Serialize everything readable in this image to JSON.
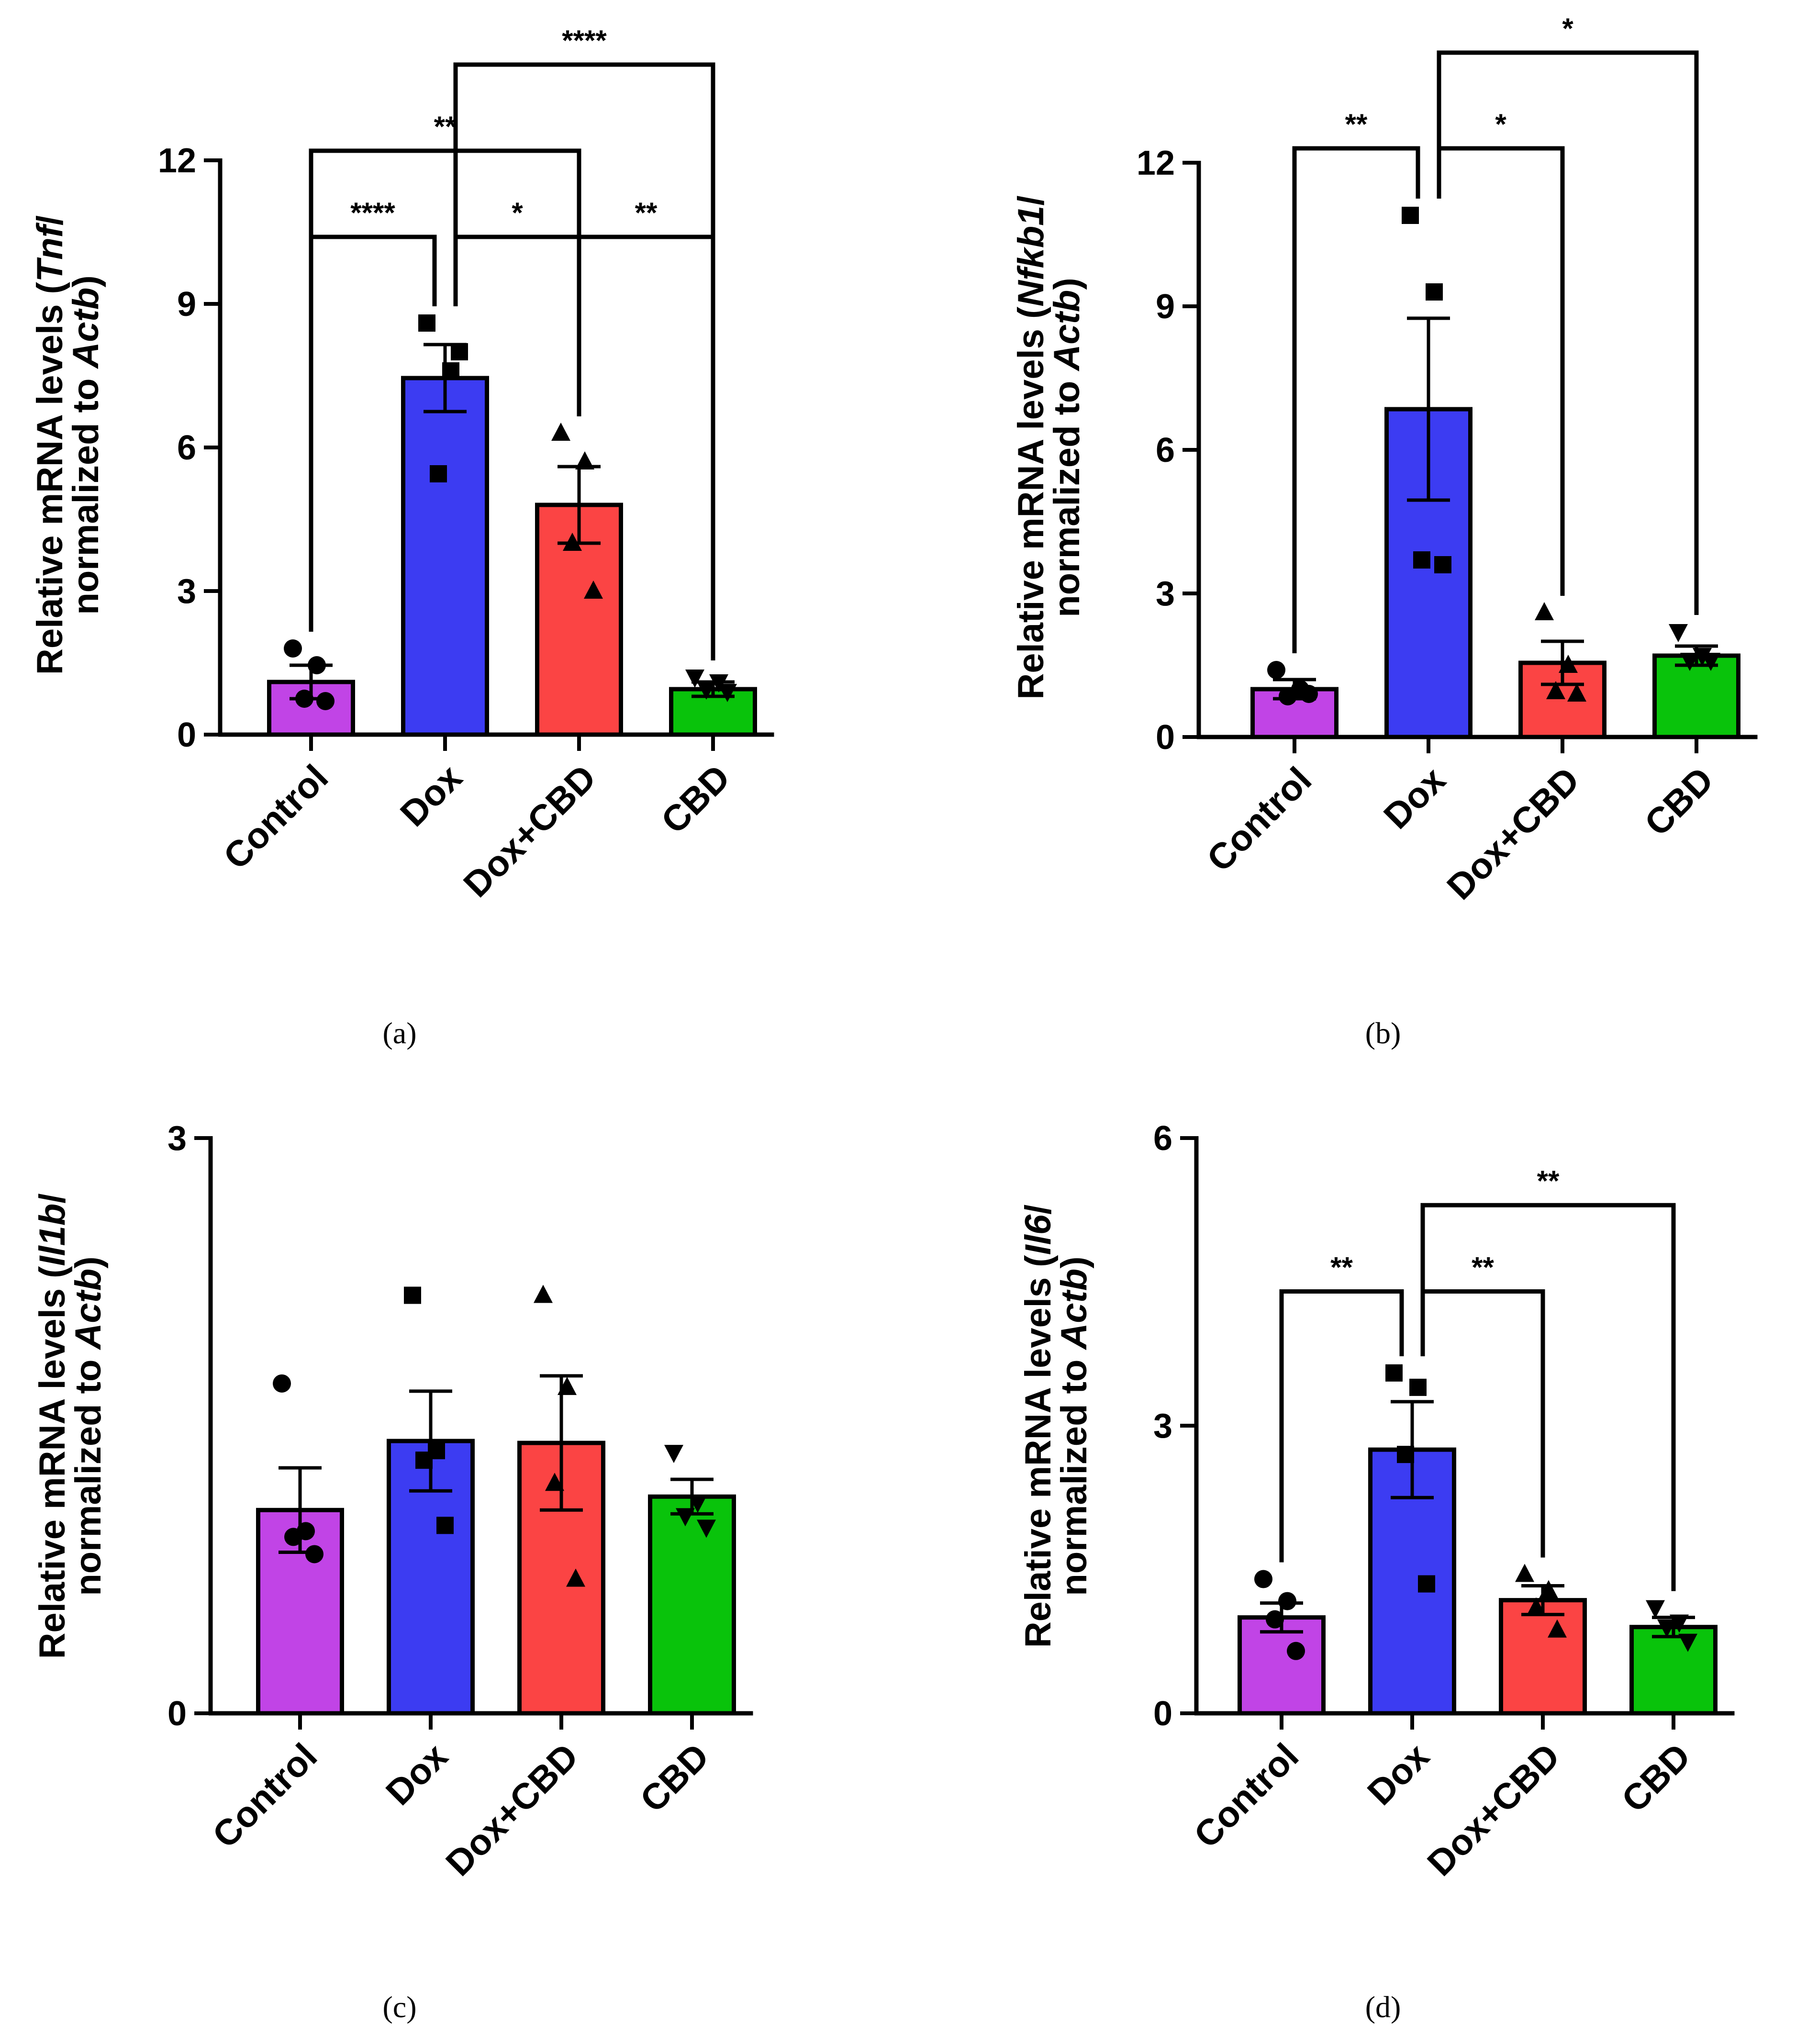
{
  "figure": {
    "panels_caption": [
      "(a)",
      "(b)",
      "(c)",
      "(d)"
    ]
  },
  "colors": {
    "Control": "#c144e6",
    "Dox": "#3c3cf2",
    "Dox+CBD": "#fb4444",
    "CBD": "#09c30b",
    "axis": "#000000"
  },
  "chart_data": [
    {
      "type": "bar",
      "panel": "(a)",
      "categories": [
        "Control",
        "Dox",
        "Dox+CBD",
        "CBD"
      ],
      "values": [
        1.1,
        7.45,
        4.8,
        0.95
      ],
      "sem": [
        0.35,
        0.7,
        0.8,
        0.15
      ],
      "points": [
        [
          1.8,
          1.45,
          0.75,
          0.7
        ],
        [
          8.6,
          7.6,
          5.45,
          8.0
        ],
        [
          6.3,
          5.7,
          4.0,
          3.0
        ],
        [
          1.2,
          1.1,
          0.95,
          0.9
        ]
      ],
      "markers": [
        "circle",
        "square",
        "triangle-up",
        "triangle-down"
      ],
      "ylabel_prefix": "Relative mRNA levels (",
      "ylabel_gene": "Tnf",
      "ylabel_mid": "/",
      "ylabel_line2_prefix": "normalized to ",
      "ylabel_ref": "Actb",
      "ylabel_close": ")",
      "ylim": [
        0,
        12
      ],
      "yticks": [
        "0",
        "3",
        "6",
        "9",
        "12"
      ],
      "brackets": [
        {
          "from": 0,
          "to": 1,
          "label": "****",
          "level": 10.4
        },
        {
          "from": 1,
          "to": 2,
          "label": "*",
          "level": 10.4
        },
        {
          "from": 2,
          "to": 3,
          "label": "**",
          "level": 10.4
        },
        {
          "from": 0,
          "to": 2,
          "label": "**",
          "level": 12.2
        },
        {
          "from": 1,
          "to": 3,
          "label": "****",
          "level": 14.0
        }
      ]
    },
    {
      "type": "bar",
      "panel": "(b)",
      "categories": [
        "Control",
        "Dox",
        "Dox+CBD",
        "CBD"
      ],
      "values": [
        1.0,
        6.85,
        1.55,
        1.7
      ],
      "sem": [
        0.2,
        1.9,
        0.45,
        0.2
      ],
      "points": [
        [
          1.4,
          1.0,
          0.85,
          0.9
        ],
        [
          10.9,
          9.3,
          3.7,
          3.6
        ],
        [
          2.6,
          1.5,
          0.95,
          0.9
        ],
        [
          2.2,
          1.7,
          1.6,
          1.6
        ]
      ],
      "markers": [
        "circle",
        "square",
        "triangle-up",
        "triangle-down"
      ],
      "ylabel_prefix": "Relative mRNA levels (",
      "ylabel_gene": "Nfkb1",
      "ylabel_mid": "/",
      "ylabel_line2_prefix": "normalized to ",
      "ylabel_ref": "Actb",
      "ylabel_close": ")",
      "ylim": [
        0,
        12
      ],
      "yticks": [
        "0",
        "3",
        "6",
        "9",
        "12"
      ],
      "brackets": [
        {
          "from": 0,
          "to": 1,
          "label": "**",
          "level": 12.3
        },
        {
          "from": 1,
          "to": 2,
          "label": "*",
          "level": 12.3
        },
        {
          "from": 1,
          "to": 3,
          "label": "*",
          "level": 14.3
        }
      ]
    },
    {
      "type": "bar",
      "panel": "(c)",
      "categories": [
        "Control",
        "Dox",
        "Dox+CBD",
        "CBD"
      ],
      "values": [
        1.06,
        1.42,
        1.41,
        1.13
      ],
      "sem": [
        0.22,
        0.26,
        0.35,
        0.09
      ],
      "points": [
        [
          1.72,
          0.95,
          0.92,
          0.83
        ],
        [
          2.18,
          1.37,
          1.32,
          0.98
        ],
        [
          2.18,
          1.7,
          1.2,
          0.7
        ],
        [
          1.36,
          1.1,
          1.03,
          0.97
        ]
      ],
      "markers": [
        "circle",
        "square",
        "triangle-up",
        "triangle-down"
      ],
      "ylabel_prefix": "Relative mRNA levels (",
      "ylabel_gene": "Il1b",
      "ylabel_mid": "/",
      "ylabel_line2_prefix": "normalized to ",
      "ylabel_ref": "Actb",
      "ylabel_close": ")",
      "ylim": [
        0,
        3
      ],
      "yticks": [
        "0",
        "3"
      ],
      "brackets": []
    },
    {
      "type": "bar",
      "panel": "(d)",
      "categories": [
        "Control",
        "Dox",
        "Dox+CBD",
        "CBD"
      ],
      "values": [
        1.0,
        2.75,
        1.18,
        0.9
      ],
      "sem": [
        0.15,
        0.5,
        0.15,
        0.1
      ],
      "points": [
        [
          1.4,
          1.17,
          0.98,
          0.65
        ],
        [
          3.55,
          3.4,
          2.7,
          1.35
        ],
        [
          1.45,
          1.28,
          1.1,
          0.87
        ],
        [
          1.1,
          0.95,
          0.9,
          0.75
        ]
      ],
      "markers": [
        "circle",
        "square",
        "triangle-up",
        "triangle-down"
      ],
      "ylabel_prefix": "Relative mRNA levels (",
      "ylabel_gene": "Il6",
      "ylabel_mid": "/",
      "ylabel_line2_prefix": "normalized to ",
      "ylabel_ref": "Actb",
      "ylabel_close": ")",
      "ylim": [
        0,
        6
      ],
      "yticks": [
        "0",
        "3",
        "6"
      ],
      "brackets": [
        {
          "from": 0,
          "to": 1,
          "label": "**",
          "level": 4.4
        },
        {
          "from": 1,
          "to": 2,
          "label": "**",
          "level": 4.4
        },
        {
          "from": 1,
          "to": 3,
          "label": "**",
          "level": 5.3
        }
      ]
    }
  ]
}
